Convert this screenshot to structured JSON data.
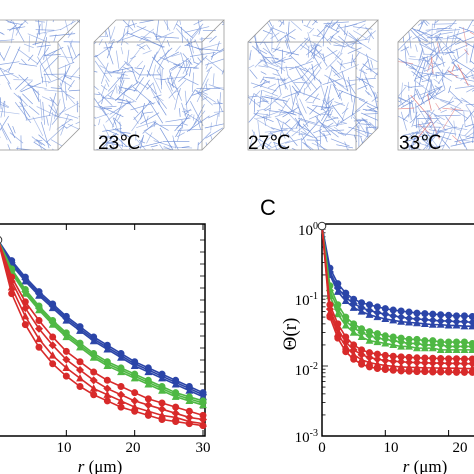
{
  "figure": {
    "top_labels": [
      "23℃",
      "27℃",
      "33℃"
    ],
    "panel_c_letter": "C",
    "panel_c_ylabel": "Θ(r)",
    "x_axis_title_parts": {
      "r": "r",
      "unit": "(μm)"
    }
  },
  "colors": {
    "blue": "#2b45a8",
    "green": "#4fb844",
    "red": "#d82a2a",
    "fiber": "#6f8fd8"
  },
  "chart_data": [
    {
      "type": "line",
      "panel": "left",
      "x": [
        0,
        2,
        4,
        6,
        8,
        10,
        12,
        14,
        16,
        18,
        20,
        22,
        24,
        26,
        28,
        30
      ],
      "xlabel": "r (μm)",
      "xlim": [
        0,
        30
      ],
      "xticks": [
        10,
        20,
        30
      ],
      "series": [
        {
          "color": "blue",
          "values": [
            1,
            0.9,
            0.82,
            0.75,
            0.69,
            0.63,
            0.58,
            0.53,
            0.49,
            0.45,
            0.41,
            0.38,
            0.35,
            0.32,
            0.29,
            0.26
          ]
        },
        {
          "color": "blue",
          "values": [
            1,
            0.89,
            0.81,
            0.74,
            0.68,
            0.62,
            0.57,
            0.52,
            0.48,
            0.44,
            0.4,
            0.37,
            0.34,
            0.31,
            0.28,
            0.25
          ]
        },
        {
          "color": "blue",
          "values": [
            1,
            0.88,
            0.8,
            0.73,
            0.67,
            0.61,
            0.56,
            0.51,
            0.47,
            0.43,
            0.39,
            0.36,
            0.33,
            0.3,
            0.27,
            0.24
          ]
        },
        {
          "color": "green",
          "values": [
            1,
            0.86,
            0.76,
            0.68,
            0.61,
            0.55,
            0.5,
            0.45,
            0.41,
            0.38,
            0.35,
            0.32,
            0.29,
            0.26,
            0.24,
            0.22
          ]
        },
        {
          "color": "green",
          "values": [
            1,
            0.85,
            0.75,
            0.67,
            0.6,
            0.54,
            0.49,
            0.44,
            0.4,
            0.37,
            0.34,
            0.31,
            0.28,
            0.25,
            0.23,
            0.21
          ]
        },
        {
          "color": "green",
          "values": [
            1,
            0.84,
            0.74,
            0.66,
            0.59,
            0.53,
            0.48,
            0.43,
            0.39,
            0.36,
            0.33,
            0.3,
            0.27,
            0.24,
            0.22,
            0.2
          ]
        },
        {
          "color": "red",
          "values": [
            1,
            0.82,
            0.7,
            0.61,
            0.53,
            0.46,
            0.41,
            0.36,
            0.32,
            0.29,
            0.26,
            0.23,
            0.21,
            0.19,
            0.17,
            0.15
          ]
        },
        {
          "color": "red",
          "values": [
            1,
            0.8,
            0.67,
            0.57,
            0.49,
            0.42,
            0.37,
            0.32,
            0.28,
            0.25,
            0.22,
            0.2,
            0.18,
            0.16,
            0.14,
            0.13
          ]
        },
        {
          "color": "red",
          "values": [
            1,
            0.77,
            0.63,
            0.52,
            0.44,
            0.38,
            0.33,
            0.28,
            0.25,
            0.22,
            0.19,
            0.17,
            0.15,
            0.14,
            0.12,
            0.11
          ]
        },
        {
          "color": "red",
          "values": [
            1,
            0.74,
            0.59,
            0.48,
            0.4,
            0.34,
            0.29,
            0.25,
            0.22,
            0.19,
            0.17,
            0.15,
            0.13,
            0.12,
            0.11,
            0.1
          ]
        }
      ]
    },
    {
      "type": "line",
      "panel": "C",
      "ylabel": "Θ(r)",
      "xlabel": "r (μm)",
      "yscale": "log",
      "ylim": [
        0.001,
        1
      ],
      "yticks": [
        "10⁰",
        "10⁻¹",
        "10⁻²",
        "10⁻³"
      ],
      "xticks": [
        0,
        10,
        20
      ],
      "x": [
        0,
        1.25,
        2.5,
        3.75,
        5,
        6.25,
        7.5,
        8.75,
        10,
        11.25,
        12.5,
        13.75,
        15,
        16.25,
        17.5,
        18.75,
        20,
        21.25,
        22.5,
        23.75,
        25
      ],
      "series": [
        {
          "color": "blue",
          "values": [
            1,
            0.25,
            0.15,
            0.11,
            0.09,
            0.08,
            0.075,
            0.07,
            0.066,
            0.063,
            0.061,
            0.059,
            0.057,
            0.056,
            0.055,
            0.054,
            0.053,
            0.052,
            0.052,
            0.051,
            0.051
          ]
        },
        {
          "color": "blue",
          "values": [
            1,
            0.22,
            0.13,
            0.095,
            0.078,
            0.068,
            0.062,
            0.058,
            0.055,
            0.052,
            0.05,
            0.048,
            0.047,
            0.046,
            0.045,
            0.044,
            0.044,
            0.043,
            0.043,
            0.042,
            0.042
          ]
        },
        {
          "color": "blue",
          "values": [
            1,
            0.2,
            0.115,
            0.085,
            0.068,
            0.06,
            0.054,
            0.05,
            0.047,
            0.045,
            0.043,
            0.042,
            0.041,
            0.04,
            0.039,
            0.039,
            0.038,
            0.038,
            0.037,
            0.037,
            0.037
          ]
        },
        {
          "color": "green",
          "values": [
            1,
            0.14,
            0.075,
            0.05,
            0.04,
            0.034,
            0.031,
            0.029,
            0.027,
            0.026,
            0.025,
            0.024,
            0.024,
            0.023,
            0.023,
            0.022,
            0.022,
            0.022,
            0.022,
            0.021,
            0.021
          ]
        },
        {
          "color": "green",
          "values": [
            1,
            0.12,
            0.065,
            0.044,
            0.035,
            0.03,
            0.027,
            0.025,
            0.024,
            0.023,
            0.022,
            0.021,
            0.021,
            0.02,
            0.02,
            0.02,
            0.019,
            0.019,
            0.019,
            0.019,
            0.019
          ]
        },
        {
          "color": "green",
          "values": [
            1,
            0.1,
            0.055,
            0.038,
            0.03,
            0.026,
            0.023,
            0.022,
            0.021,
            0.02,
            0.019,
            0.019,
            0.018,
            0.018,
            0.018,
            0.017,
            0.017,
            0.017,
            0.017,
            0.017,
            0.017
          ]
        },
        {
          "color": "red",
          "values": [
            1,
            0.075,
            0.04,
            0.026,
            0.02,
            0.017,
            0.0155,
            0.0148,
            0.0142,
            0.0138,
            0.0135,
            0.0133,
            0.0131,
            0.013,
            0.0129,
            0.0128,
            0.0127,
            0.0127,
            0.0126,
            0.0126,
            0.0126
          ]
        },
        {
          "color": "red",
          "values": [
            1,
            0.065,
            0.034,
            0.022,
            0.017,
            0.0145,
            0.0132,
            0.0125,
            0.012,
            0.0117,
            0.0115,
            0.0113,
            0.0112,
            0.0111,
            0.011,
            0.011,
            0.0109,
            0.0109,
            0.0108,
            0.0108,
            0.0108
          ]
        },
        {
          "color": "red",
          "values": [
            1,
            0.058,
            0.029,
            0.019,
            0.0145,
            0.0123,
            0.0112,
            0.0106,
            0.0102,
            0.0099,
            0.0097,
            0.0096,
            0.0095,
            0.0094,
            0.0094,
            0.0093,
            0.0093,
            0.0093,
            0.0092,
            0.0092,
            0.0092
          ]
        },
        {
          "color": "red",
          "values": [
            1,
            0.05,
            0.025,
            0.016,
            0.0125,
            0.0106,
            0.0097,
            0.0092,
            0.0089,
            0.0087,
            0.0085,
            0.0084,
            0.0083,
            0.0083,
            0.0082,
            0.0082,
            0.0082,
            0.0081,
            0.0081,
            0.0081,
            0.0081
          ]
        }
      ]
    }
  ]
}
